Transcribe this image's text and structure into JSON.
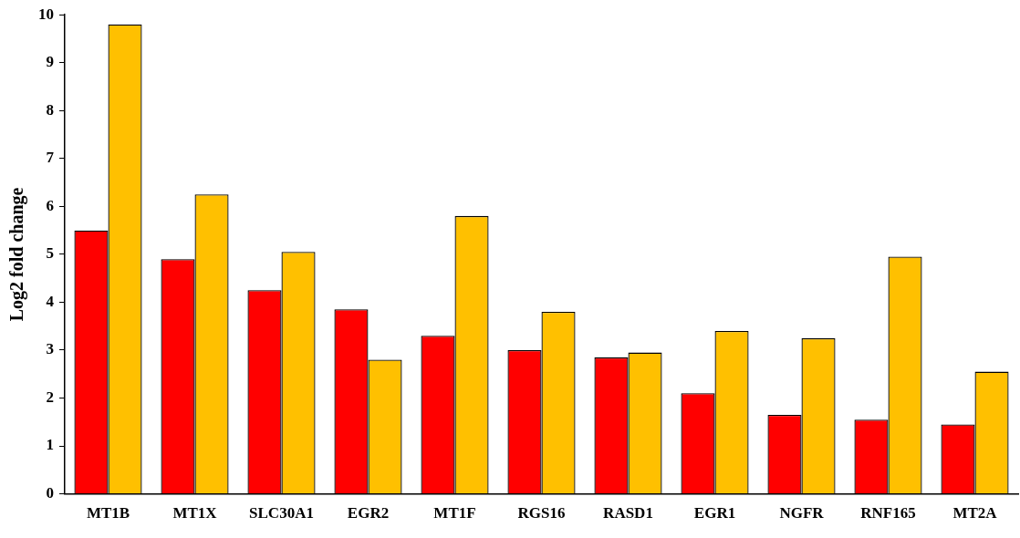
{
  "chart_data": {
    "type": "bar",
    "ylabel": "Log2 fold change",
    "categories": [
      "MT1B",
      "MT1X",
      "SLC30A1",
      "EGR2",
      "MT1F",
      "RGS16",
      "RASD1",
      "EGR1",
      "NGFR",
      "RNF165",
      "MT2A"
    ],
    "series": [
      {
        "color": "#ff0000",
        "values": [
          5.5,
          4.9,
          4.25,
          3.85,
          3.3,
          3.0,
          2.85,
          2.1,
          1.65,
          1.55,
          1.45
        ]
      },
      {
        "color": "#ffc000",
        "values": [
          9.8,
          6.25,
          5.05,
          2.8,
          5.8,
          3.8,
          2.95,
          3.4,
          3.25,
          4.95,
          2.55
        ]
      }
    ],
    "ylim": [
      0,
      10
    ],
    "yticks": [
      0,
      1,
      2,
      3,
      4,
      5,
      6,
      7,
      8,
      9,
      10
    ],
    "grid": false,
    "legend": false
  }
}
